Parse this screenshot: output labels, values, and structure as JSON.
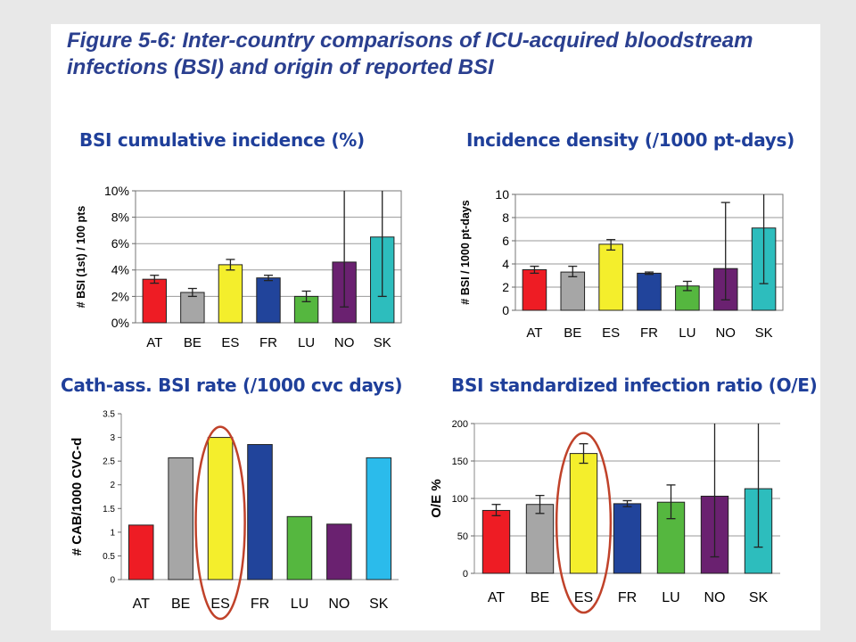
{
  "figure_title": "Figure 5-6: Inter-country comparisons of ICU-acquired bloodstream infections (BSI) and origin of reported BSI",
  "colors": {
    "title": "#2a3f8f",
    "panel_title": "#1f3f9a",
    "highlight": "#c0422a",
    "AT": "#ee1c24",
    "BE": "#a6a6a6",
    "ES": "#f4ee2c",
    "FR": "#21449b",
    "LU": "#55b73f",
    "NO": "#6a2170",
    "SK": "#2dbdbd",
    "SK_cath": "#2bbbeb"
  },
  "chart_data": [
    {
      "id": "cum-incidence",
      "type": "bar",
      "title": "BSI cumulative incidence (%)",
      "ylabel": "# BSI (1st) / 100 pts",
      "categories": [
        "AT",
        "BE",
        "ES",
        "FR",
        "LU",
        "NO",
        "SK"
      ],
      "values": [
        3.3,
        2.3,
        4.4,
        3.4,
        2.0,
        4.6,
        6.5
      ],
      "error_low": [
        3.0,
        2.0,
        4.0,
        3.2,
        1.6,
        1.2,
        2.0
      ],
      "error_high": [
        3.6,
        2.6,
        4.8,
        3.6,
        2.4,
        10.3,
        10.3
      ],
      "ylim": [
        0,
        10
      ],
      "yticks": [
        0,
        2,
        4,
        6,
        8,
        10
      ],
      "ytick_labels": [
        "0%",
        "2%",
        "4%",
        "6%",
        "8%",
        "10%"
      ],
      "grid": true,
      "plot_border": true,
      "legend": "none"
    },
    {
      "id": "density",
      "type": "bar",
      "title": "Incidence density (/1000 pt-days)",
      "ylabel": "# BSI / 1000 pt-days",
      "categories": [
        "AT",
        "BE",
        "ES",
        "FR",
        "LU",
        "NO",
        "SK"
      ],
      "values": [
        3.5,
        3.3,
        5.7,
        3.2,
        2.1,
        3.6,
        7.1
      ],
      "error_low": [
        3.2,
        2.9,
        5.2,
        3.1,
        1.7,
        0.9,
        2.3
      ],
      "error_high": [
        3.8,
        3.8,
        6.1,
        3.3,
        2.5,
        9.3,
        10.3
      ],
      "ylim": [
        0,
        10
      ],
      "yticks": [
        0,
        2,
        4,
        6,
        8,
        10
      ],
      "ytick_labels": [
        "0",
        "2",
        "4",
        "6",
        "8",
        "10"
      ],
      "grid": true,
      "plot_border": true,
      "legend": "none"
    },
    {
      "id": "cath",
      "type": "bar",
      "title": "Cath-ass. BSI rate (/1000 cvc days)",
      "ylabel": "# CAB/1000 CVC-d",
      "categories": [
        "AT",
        "BE",
        "ES",
        "FR",
        "LU",
        "NO",
        "SK"
      ],
      "values": [
        1.15,
        2.57,
        3.0,
        2.85,
        1.33,
        1.17,
        2.57
      ],
      "ylim": [
        0,
        3.5
      ],
      "yticks": [
        0,
        0.5,
        1,
        1.5,
        2,
        2.5,
        3,
        3.5
      ],
      "ytick_labels": [
        "0",
        "0.5",
        "1",
        "1.5",
        "2",
        "2.5",
        "3",
        "3.5"
      ],
      "grid": false,
      "plot_border": false,
      "legend": "none",
      "highlight": "ES"
    },
    {
      "id": "sir",
      "type": "bar",
      "title": "BSI standardized infection ratio (O/E)",
      "ylabel": "O/E %",
      "categories": [
        "AT",
        "BE",
        "ES",
        "FR",
        "LU",
        "NO",
        "SK"
      ],
      "values": [
        84,
        92,
        160,
        93,
        95,
        103,
        113
      ],
      "error_low": [
        77,
        80,
        147,
        89,
        73,
        22,
        35
      ],
      "error_high": [
        92,
        104,
        173,
        97,
        118,
        205,
        205
      ],
      "ylim": [
        0,
        200
      ],
      "yticks": [
        0,
        50,
        100,
        150,
        200
      ],
      "ytick_labels": [
        "0",
        "50",
        "100",
        "150",
        "200"
      ],
      "grid": true,
      "plot_border": false,
      "legend": "none",
      "highlight": "ES"
    }
  ]
}
